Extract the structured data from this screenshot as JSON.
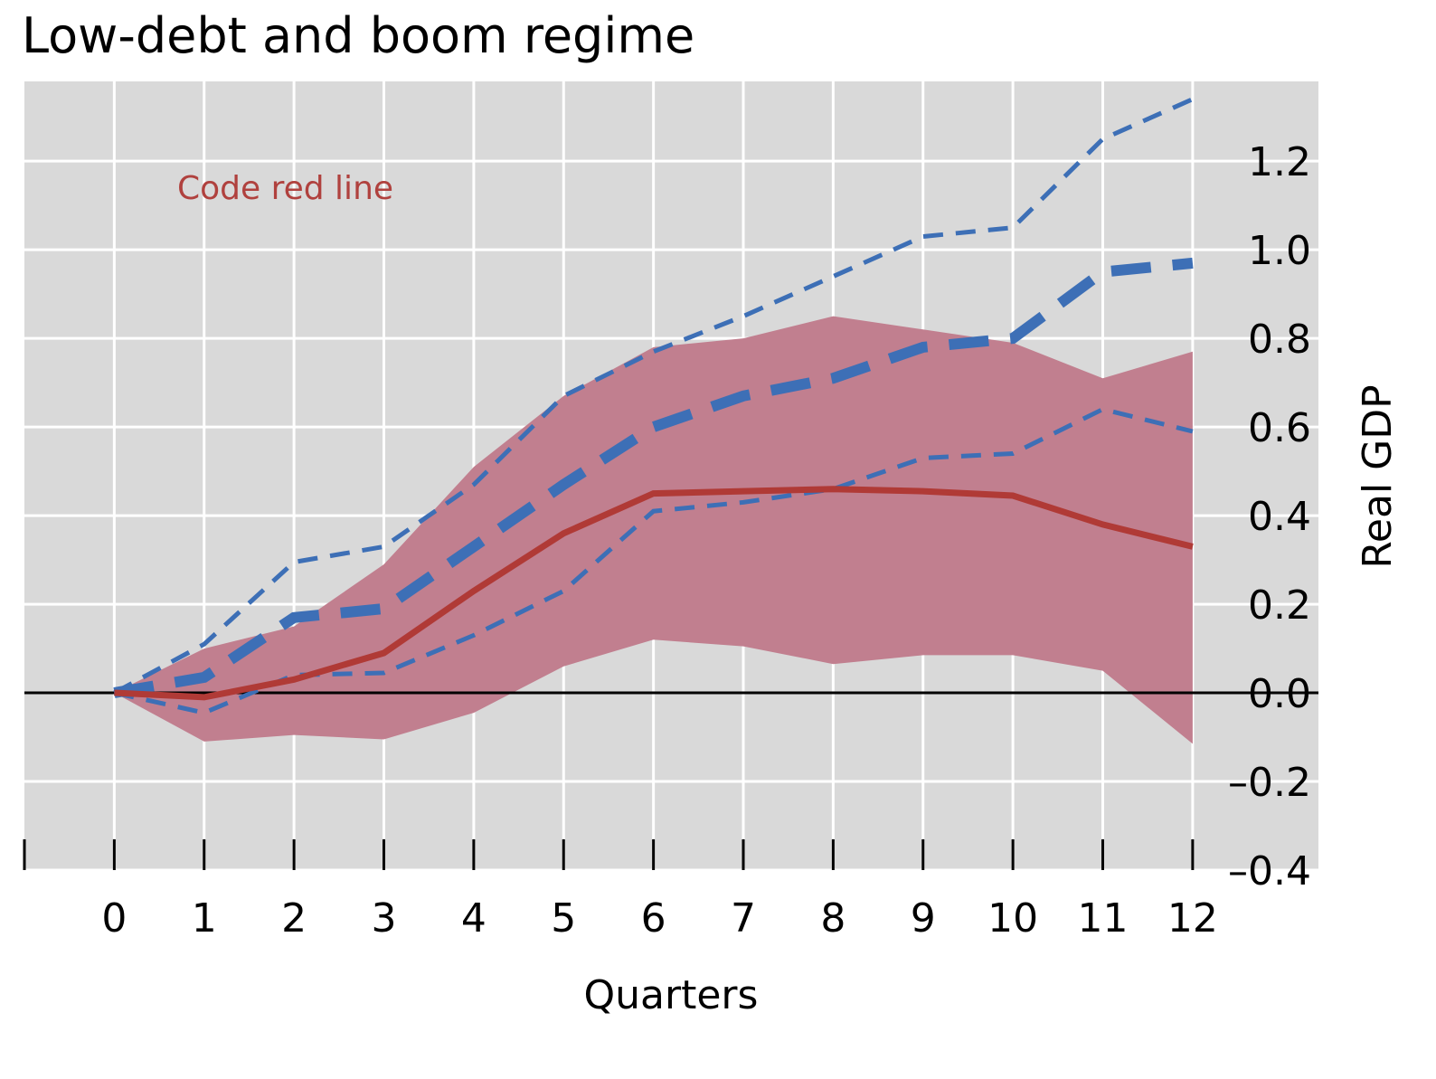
{
  "chart_data": {
    "type": "line",
    "title": "Low-debt and boom regime",
    "xlabel": "Quarters",
    "ylabel": "Real GDP",
    "x": [
      0,
      1,
      2,
      3,
      4,
      5,
      6,
      7,
      8,
      9,
      10,
      11,
      12
    ],
    "xlim": [
      -1,
      13.4
    ],
    "ylim": [
      -0.4,
      1.38
    ],
    "yticks": [
      "1.2",
      "1.0",
      "0.8",
      "0.6",
      "0.4",
      "0.2",
      "0.0",
      "–0.2",
      "–0.4"
    ],
    "ytick_values": [
      1.2,
      1.0,
      0.8,
      0.6,
      0.4,
      0.2,
      0.0,
      -0.2,
      -0.4
    ],
    "grid": true,
    "y_axis_side": "right",
    "annotation": "Code red line",
    "colors": {
      "red_line": "#b03a36",
      "band": "#c17f8f",
      "blue": "#3d6fb6",
      "background": "#d9d9d9",
      "grid": "#ffffff",
      "annotation": "#b0413e"
    },
    "series": [
      {
        "role": "red-line",
        "values": [
          0.0,
          -0.01,
          0.03,
          0.09,
          0.23,
          0.36,
          0.45,
          0.455,
          0.46,
          0.455,
          0.445,
          0.38,
          0.33
        ]
      },
      {
        "role": "red-band-upper",
        "values": [
          0.0,
          0.1,
          0.15,
          0.29,
          0.51,
          0.67,
          0.78,
          0.8,
          0.85,
          0.82,
          0.79,
          0.71,
          0.77
        ]
      },
      {
        "role": "red-band-lower",
        "values": [
          0.0,
          -0.11,
          -0.095,
          -0.105,
          -0.045,
          0.06,
          0.12,
          0.105,
          0.065,
          0.085,
          0.085,
          0.05,
          -0.115
        ]
      },
      {
        "role": "blue-thick-dashed",
        "values": [
          0.0,
          0.035,
          0.17,
          0.19,
          0.33,
          0.47,
          0.6,
          0.67,
          0.71,
          0.78,
          0.8,
          0.95,
          0.97
        ]
      },
      {
        "role": "blue-upper-dashed",
        "values": [
          0.0,
          0.11,
          0.295,
          0.33,
          0.47,
          0.67,
          0.77,
          0.85,
          0.94,
          1.03,
          1.05,
          1.25,
          1.34
        ]
      },
      {
        "role": "blue-lower-dashed",
        "values": [
          0.0,
          -0.045,
          0.04,
          0.045,
          0.13,
          0.23,
          0.41,
          0.43,
          0.46,
          0.53,
          0.54,
          0.64,
          0.59
        ]
      }
    ]
  }
}
